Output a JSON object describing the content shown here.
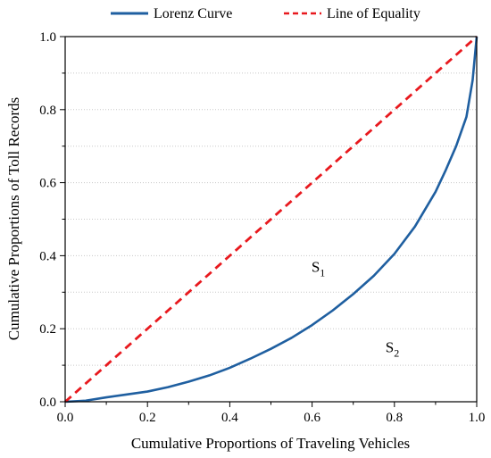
{
  "chart_data": {
    "type": "line",
    "xlabel": "Cumulative Proportions of Traveling Vehicles",
    "ylabel": "Cumulative Proportions of Toll Records",
    "xlim": [
      0,
      1
    ],
    "ylim": [
      0,
      1
    ],
    "xticks": [
      0.0,
      0.2,
      0.4,
      0.6,
      0.8,
      1.0
    ],
    "yticks": [
      0.0,
      0.2,
      0.4,
      0.6,
      0.8,
      1.0
    ],
    "xtick_labels": [
      "0.0",
      "0.2",
      "0.4",
      "0.6",
      "0.8",
      "1.0"
    ],
    "ytick_labels": [
      "0.0",
      "0.2",
      "0.4",
      "0.6",
      "0.8",
      "1.0"
    ],
    "grid": "horizontal dotted",
    "legend_position": "top",
    "series": [
      {
        "name": "Lorenz Curve",
        "color": "#1f5fa0",
        "style": "solid",
        "x": [
          0.0,
          0.05,
          0.1,
          0.15,
          0.2,
          0.25,
          0.3,
          0.35,
          0.4,
          0.45,
          0.5,
          0.55,
          0.6,
          0.65,
          0.7,
          0.75,
          0.8,
          0.85,
          0.9,
          0.925,
          0.95,
          0.975,
          0.99,
          1.0
        ],
        "y": [
          0.0,
          0.003,
          0.012,
          0.02,
          0.028,
          0.04,
          0.055,
          0.072,
          0.093,
          0.118,
          0.145,
          0.175,
          0.21,
          0.25,
          0.295,
          0.345,
          0.405,
          0.48,
          0.575,
          0.635,
          0.7,
          0.78,
          0.88,
          1.0
        ]
      },
      {
        "name": "Line of Equality",
        "color": "#e8191e",
        "style": "dashed",
        "x": [
          0.0,
          1.0
        ],
        "y": [
          0.0,
          1.0
        ]
      }
    ],
    "annotations": [
      {
        "base": "S",
        "sub": "1",
        "x": 0.62,
        "y": 0.37
      },
      {
        "base": "S",
        "sub": "2",
        "x": 0.8,
        "y": 0.15
      }
    ]
  }
}
